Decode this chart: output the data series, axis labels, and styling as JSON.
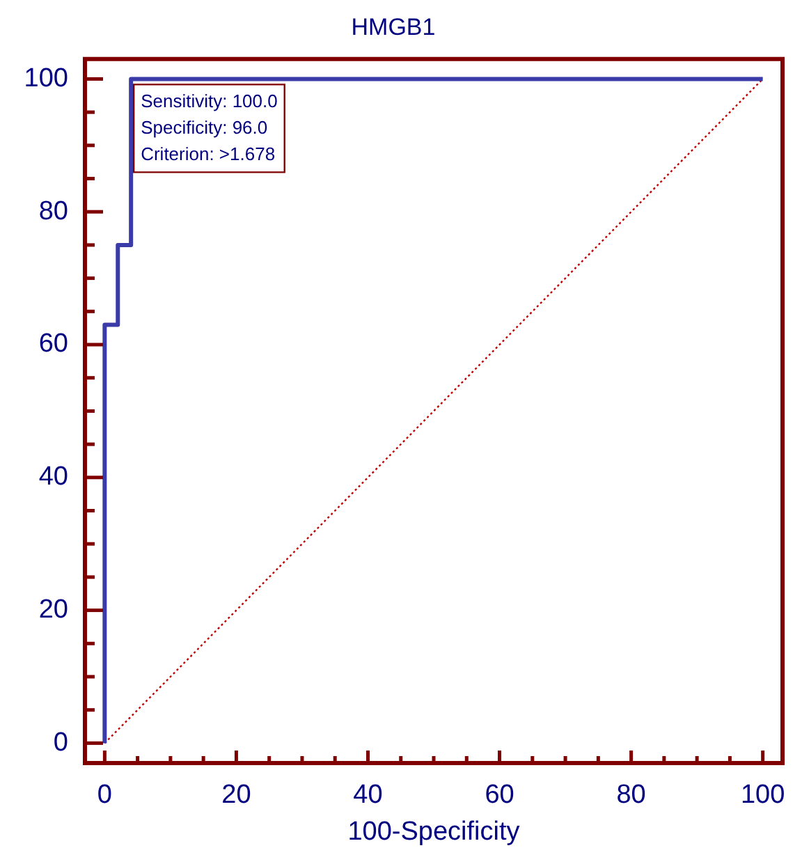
{
  "chart_data": {
    "type": "line",
    "title": "HMGB1",
    "xlabel": "100-Specificity",
    "xlim": [
      -3,
      103
    ],
    "ylim": [
      -3,
      103
    ],
    "xticks": [
      0,
      {
        "value": 5,
        "label": null
      },
      {
        "value": 10,
        "label": null
      },
      {
        "value": 15,
        "label": null
      },
      20,
      {
        "value": 25,
        "label": null
      },
      {
        "value": 30,
        "label": null
      },
      {
        "value": 35,
        "label": null
      },
      40,
      {
        "value": 45,
        "label": null
      },
      {
        "value": 50,
        "label": null
      },
      {
        "value": 55,
        "label": null
      },
      60,
      {
        "value": 65,
        "label": null
      },
      {
        "value": 70,
        "label": null
      },
      {
        "value": 75,
        "label": null
      },
      80,
      {
        "value": 85,
        "label": null
      },
      {
        "value": 90,
        "label": null
      },
      {
        "value": 95,
        "label": null
      },
      100
    ],
    "yticks": [
      0,
      {
        "value": 5,
        "label": null
      },
      {
        "value": 10,
        "label": null
      },
      {
        "value": 15,
        "label": null
      },
      20,
      {
        "value": 25,
        "label": null
      },
      {
        "value": 30,
        "label": null
      },
      {
        "value": 35,
        "label": null
      },
      40,
      {
        "value": 45,
        "label": null
      },
      {
        "value": 50,
        "label": null
      },
      {
        "value": 55,
        "label": null
      },
      60,
      {
        "value": 65,
        "label": null
      },
      {
        "value": 70,
        "label": null
      },
      {
        "value": 75,
        "label": null
      },
      80,
      {
        "value": 85,
        "label": null
      },
      {
        "value": 90,
        "label": null
      },
      {
        "value": 95,
        "label": null
      },
      100
    ],
    "grid": false,
    "legend": false,
    "marker": "none",
    "series": [
      {
        "color": "#3a3aa8",
        "line_style": "solid",
        "x": [
          0,
          0,
          2,
          2,
          4,
          4,
          100
        ],
        "values": [
          0,
          63,
          63,
          75,
          75,
          100,
          100
        ]
      },
      {
        "color": "#c00000",
        "line_style": "dotted",
        "x": [
          0,
          100
        ],
        "values": [
          0,
          100
        ]
      }
    ],
    "annotations": [
      "Sensitivity: 100.0",
      "Specificity: 96.0",
      "Criterion: >1.678"
    ]
  }
}
